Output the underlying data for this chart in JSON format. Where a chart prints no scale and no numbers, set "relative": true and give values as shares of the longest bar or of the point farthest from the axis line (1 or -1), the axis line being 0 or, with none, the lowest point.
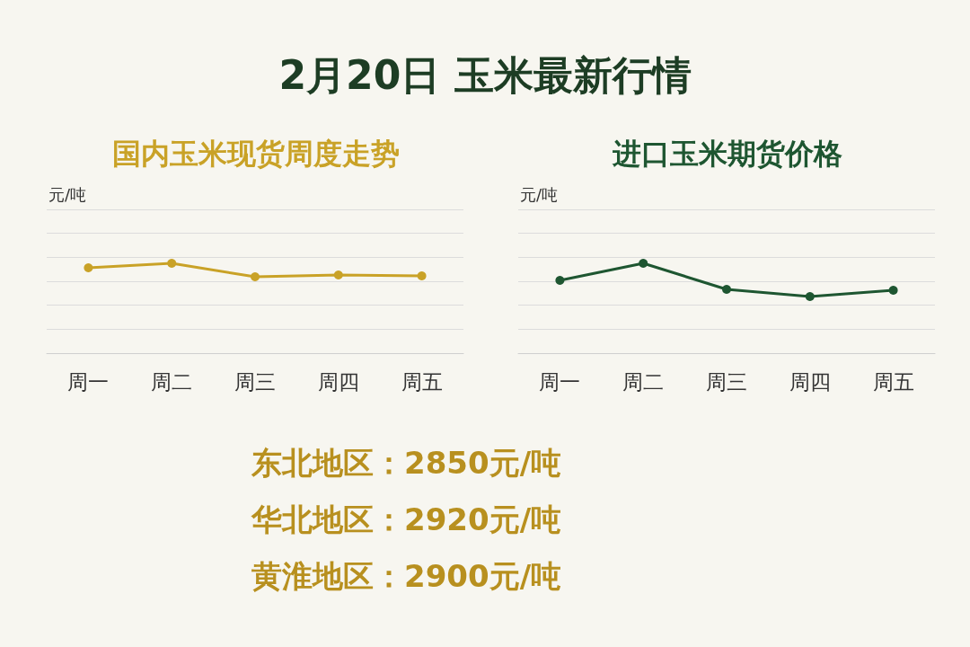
{
  "chart_data": [
    {
      "type": "other",
      "title": "2月20日 玉米最新行情"
    },
    {
      "type": "line",
      "title": "国内玉米现货周度走势",
      "ylabel": "元/吨",
      "categories": [
        "周一",
        "周二",
        "周三",
        "周四",
        "周五"
      ],
      "relative": true,
      "grid": "y",
      "marker": "circle",
      "series": [
        {
          "color": "#c9a227",
          "values": [
            0.95,
            1,
            0.85,
            0.87,
            0.86
          ]
        }
      ]
    },
    {
      "type": "line",
      "title": "进口玉米期货价格",
      "ylabel": "元/吨",
      "categories": [
        "周一",
        "周二",
        "周三",
        "周四",
        "周五"
      ],
      "relative": true,
      "grid": "y",
      "marker": "circle",
      "series": [
        {
          "color": "#1e5631",
          "values": [
            0.81,
            1,
            0.71,
            0.63,
            0.7
          ]
        }
      ]
    },
    {
      "type": "other",
      "annotations": [
        "东北地区：2850元/吨",
        "华北地区：2920元/吨",
        "黄淮地区：2900元/吨"
      ]
    }
  ]
}
